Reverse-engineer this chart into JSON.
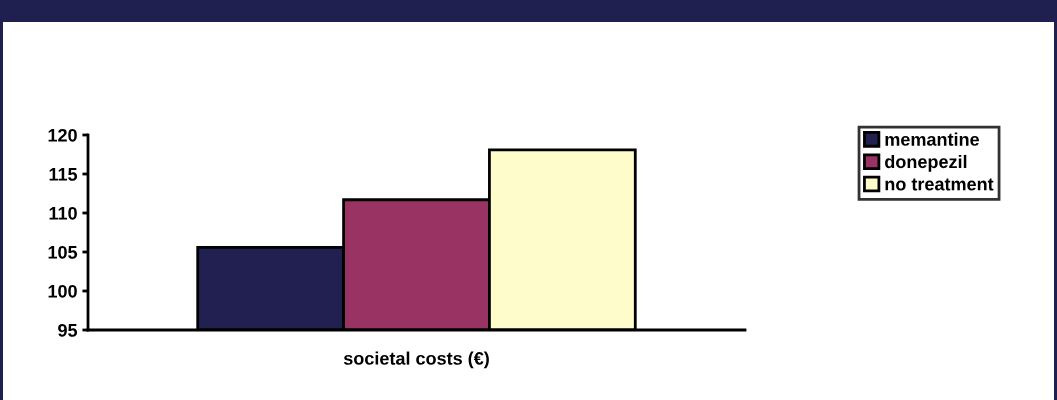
{
  "chart_data": {
    "type": "bar",
    "xlabel": "societal costs (€)",
    "categories": [
      null
    ],
    "series": [
      {
        "name": "memantine",
        "color": "#222050",
        "values": [
          105.6
        ]
      },
      {
        "name": "donepezil",
        "color": "#983363",
        "values": [
          111.7
        ]
      },
      {
        "name": "no treatment",
        "color": "#fffccc",
        "values": [
          118.1
        ]
      }
    ],
    "ylim": [
      95,
      120
    ],
    "yticks": [
      95,
      100,
      105,
      110,
      115,
      120
    ],
    "grid": false,
    "legend": "right"
  }
}
